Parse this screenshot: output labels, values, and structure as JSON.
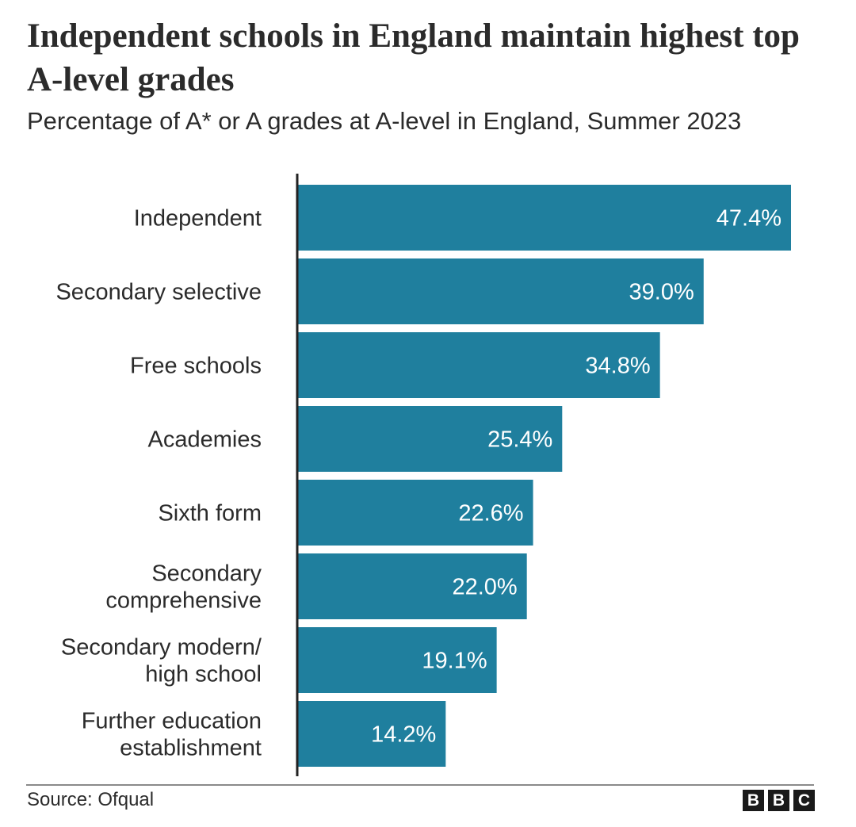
{
  "chart_data": {
    "type": "bar",
    "orientation": "horizontal",
    "title": "Independent schools in England maintain highest top A-level grades",
    "subtitle": "Percentage of A* or A grades at A-level in England, Summer 2023",
    "categories": [
      [
        "Independent"
      ],
      [
        "Secondary selective"
      ],
      [
        "Free schools"
      ],
      [
        "Academies"
      ],
      [
        "Sixth form"
      ],
      [
        "Secondary",
        "comprehensive"
      ],
      [
        "Secondary modern/",
        "high school"
      ],
      [
        "Further education",
        "establishment"
      ]
    ],
    "values": [
      47.4,
      39.0,
      34.8,
      25.4,
      22.6,
      22.0,
      19.1,
      14.2
    ],
    "value_labels": [
      "47.4%",
      "39.0%",
      "34.8%",
      "25.4%",
      "22.6%",
      "22.0%",
      "19.1%",
      "14.2%"
    ],
    "xlim": [
      0,
      47.4
    ],
    "bar_color": "#1f7f9e",
    "grid": false,
    "legend": "none"
  },
  "footer": {
    "source": "Source: Ofqual",
    "logo_letters": [
      "B",
      "B",
      "C"
    ]
  }
}
